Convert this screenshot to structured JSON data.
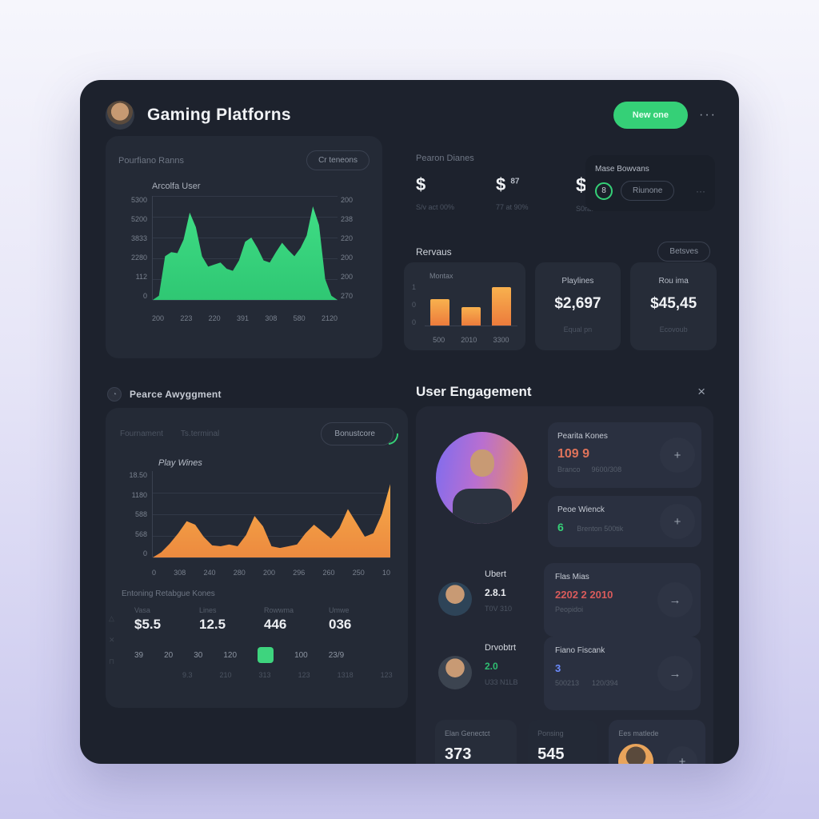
{
  "header": {
    "title": "Gaming Platforns",
    "new_button": "New one",
    "more": "···"
  },
  "platform_card": {
    "label": "Pourfiano Ranns",
    "filter_button": "Cr teneons",
    "chart_title": "Arcolfa User",
    "y_left": [
      "5300",
      "5200",
      "3833",
      "2280",
      "112",
      "0"
    ],
    "y_right": [
      "200",
      "238",
      "220",
      "200",
      "200",
      "270"
    ],
    "x_labels": [
      "200",
      "223",
      "220",
      "391",
      "308",
      "580",
      "2120"
    ]
  },
  "assignment": {
    "heading": "Pearce Awyggment",
    "icon": "history-icon",
    "tab1": "Fournament",
    "tab2": "Ts.terminal",
    "score_button": "Bonustcore",
    "chart_title": "Play Wines",
    "y_labels": [
      "18.50",
      "1180",
      "588",
      "568",
      "0"
    ],
    "x_labels": [
      "0",
      "308",
      "240",
      "280",
      "200",
      "296",
      "260",
      "250",
      "10"
    ],
    "sub_heading": "Entoning Retabgue Kones",
    "side_glyphs": [
      "△",
      "✕",
      "⊓"
    ],
    "stats": [
      {
        "label": "Vasa",
        "value": "$5.5"
      },
      {
        "label": "Lines",
        "value": "12.5"
      },
      {
        "label": "Rowwma",
        "value": "446"
      },
      {
        "label": "Umwe",
        "value": "036"
      }
    ],
    "numrow1": [
      "39",
      "20",
      "30",
      "120",
      "100",
      "23/9"
    ],
    "numrow2": [
      "9.3",
      "210",
      "313",
      "123",
      "1318",
      "123"
    ]
  },
  "summary": {
    "label": "Pearon Dianes",
    "stats": [
      {
        "value": "$",
        "sup": "",
        "sub": "S/v act 00%"
      },
      {
        "value": "$",
        "sup": "87",
        "sub": "77 at 90%"
      },
      {
        "value": "$,788",
        "sup": "",
        "sub": "S0rat72a0"
      }
    ],
    "bonus_card": {
      "title": "Mase Bowvans",
      "badge": "8",
      "button": "Riunone",
      "more": "···"
    }
  },
  "revenue": {
    "heading": "Rervaus",
    "filter_button": "Betsves",
    "bar_card": {
      "label": "Montax",
      "y": [
        "1",
        "0",
        "0"
      ],
      "x": [
        "500",
        "2010",
        "3300"
      ]
    },
    "cards": [
      {
        "title": "Playlines",
        "value": "$2,697",
        "sub": "Equal pn"
      },
      {
        "title": "Rou ima",
        "value": "$45,45",
        "sub": "Ecovoub"
      }
    ]
  },
  "engagement": {
    "heading": "User Engagement",
    "close": "×",
    "metrics": [
      {
        "title": "Pearita Kones",
        "value": "109 9",
        "sub1": "Branco",
        "sub2": "9600/308",
        "button": "+"
      },
      {
        "title": "Peoe Wienck",
        "value": "6",
        "sub1": "Brenton 500tik",
        "button": "+"
      }
    ],
    "users": [
      {
        "name": "Ubert",
        "value": "2.8.1",
        "sub": "T0V 310",
        "card_title": "Flas Mias",
        "card_value": "2202 2 2010",
        "card_sub": "Peopidoi",
        "button": "→"
      },
      {
        "name": "Drvobtrt",
        "value": "2.0",
        "sub": "U33 N1LB",
        "card_title": "Fiano Fiscank",
        "card_value": "3",
        "card_sub": "500213",
        "card_sub2": "120/394",
        "button": "→"
      }
    ],
    "bottom_cards": [
      {
        "title": "Elan Genectct",
        "value": "373"
      },
      {
        "title": "Ponsing",
        "value": "545"
      },
      {
        "title": "Ees matlede",
        "button": "+"
      }
    ]
  },
  "chart_data": [
    {
      "type": "area",
      "title": "Arcolfa User",
      "series_name": "active-users",
      "y_ticks_left": [
        "5300",
        "5200",
        "3833",
        "2280",
        "112",
        "0"
      ],
      "y_ticks_right": [
        "200",
        "238",
        "220",
        "200",
        "200",
        "270"
      ],
      "x": [
        "200",
        "223",
        "220",
        "391",
        "308",
        "580",
        "2120"
      ],
      "grid": true,
      "legend": "none",
      "color": "#3ed47e",
      "values": [
        0,
        4,
        42,
        46,
        45,
        58,
        84,
        70,
        42,
        32,
        34,
        36,
        30,
        28,
        38,
        56,
        60,
        50,
        38,
        36,
        46,
        55,
        48,
        42,
        50,
        62,
        90,
        72,
        20,
        4,
        0
      ]
    },
    {
      "type": "bar",
      "title": "Montax",
      "categories": [
        "500",
        "2010",
        "3300"
      ],
      "values": [
        65,
        45,
        95
      ],
      "ylim": [
        0,
        1
      ],
      "color": "#f0913f"
    },
    {
      "type": "area",
      "title": "Play Wines",
      "series_name": "play-times",
      "y_ticks": [
        "18.50",
        "1180",
        "588",
        "568",
        "0"
      ],
      "x": [
        "0",
        "308",
        "240",
        "280",
        "200",
        "296",
        "260",
        "250",
        "10"
      ],
      "grid": true,
      "legend": "none",
      "color": "#f0a045",
      "values": [
        0,
        6,
        16,
        28,
        42,
        38,
        24,
        14,
        13,
        15,
        13,
        26,
        48,
        36,
        13,
        11,
        13,
        15,
        28,
        38,
        30,
        22,
        34,
        56,
        40,
        24,
        28,
        50,
        85
      ]
    }
  ]
}
